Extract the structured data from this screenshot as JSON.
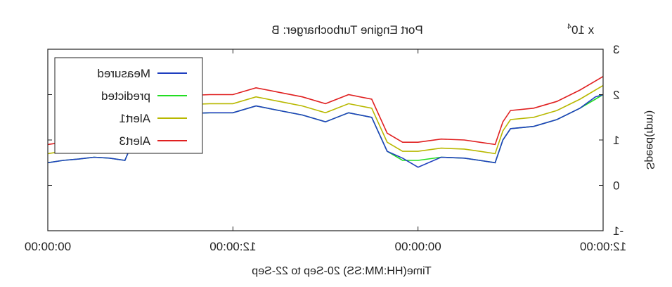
{
  "chart_data": {
    "type": "line",
    "title": "Port Engine Turbocharger: B",
    "xlabel": "Time(HH:MM:SS) 20-Sep to 22-Sep",
    "ylabel": "Speed(rpm)",
    "y_multiplier_base": "x 10",
    "y_multiplier_exp": "4",
    "ylim": [
      -1,
      3
    ],
    "yticks": [
      -1,
      0,
      1,
      2,
      3
    ],
    "ytick_labels": [
      "-1",
      "0",
      "1",
      "2",
      "3"
    ],
    "xlim_hours": [
      0,
      36
    ],
    "xticks_hours": [
      0,
      12,
      24,
      36
    ],
    "xtick_labels": [
      "12:00:00",
      "00:00:00",
      "12:00:00",
      "00:00:00"
    ],
    "grid": false,
    "legend_position": "top-left",
    "x_hours": [
      0,
      0.5,
      1.5,
      3.0,
      4.5,
      6.0,
      6.5,
      7.0,
      8.0,
      9.0,
      10.5,
      12.0,
      13.0,
      14.0,
      15.0,
      16.5,
      18.0,
      19.5,
      21.0,
      22.5,
      24.0,
      25.5,
      27.0,
      28.5,
      29.5,
      30.0,
      30.5,
      31.0,
      32.0,
      33.0,
      34.0,
      35.0,
      36.0
    ],
    "series": [
      {
        "name": "Measured",
        "color": "#1f3fbf",
        "values": [
          2.0,
          1.95,
          1.7,
          1.45,
          1.3,
          1.25,
          1.0,
          0.5,
          0.55,
          0.6,
          0.62,
          0.4,
          0.6,
          0.75,
          1.5,
          1.6,
          1.4,
          1.55,
          1.65,
          1.75,
          1.6,
          1.6,
          1.58,
          1.6,
          1.85,
          1.2,
          0.95,
          0.55,
          0.6,
          0.62,
          0.58,
          0.55,
          0.5
        ]
      },
      {
        "name": "predicted",
        "color": "#22dd22",
        "values": [
          2.0,
          1.9,
          1.7,
          1.45,
          1.3,
          1.25,
          1.0,
          0.5,
          0.55,
          0.6,
          0.62,
          0.55,
          0.55,
          0.75,
          1.5,
          1.6,
          1.4,
          1.55,
          1.65,
          1.75,
          1.6,
          1.6,
          1.58,
          1.6,
          1.85,
          1.2,
          0.95,
          0.55,
          0.6,
          0.62,
          0.58,
          0.55,
          0.5
        ]
      },
      {
        "name": "Alert1",
        "color": "#b8b800",
        "values": [
          2.2,
          2.1,
          1.9,
          1.65,
          1.5,
          1.45,
          1.2,
          0.7,
          0.75,
          0.8,
          0.82,
          0.75,
          0.75,
          0.95,
          1.7,
          1.8,
          1.6,
          1.75,
          1.85,
          1.95,
          1.8,
          1.8,
          1.78,
          1.8,
          2.05,
          1.4,
          1.15,
          0.75,
          0.8,
          0.82,
          0.78,
          0.75,
          0.7
        ]
      },
      {
        "name": "Alert3",
        "color": "#e02020",
        "values": [
          2.4,
          2.3,
          2.1,
          1.85,
          1.7,
          1.65,
          1.4,
          0.9,
          0.95,
          1.0,
          1.02,
          0.95,
          0.95,
          1.15,
          1.9,
          2.0,
          1.8,
          1.95,
          2.05,
          2.15,
          2.0,
          2.0,
          1.98,
          2.0,
          2.25,
          1.6,
          1.35,
          0.95,
          1.0,
          1.02,
          0.98,
          0.95,
          0.9
        ]
      }
    ]
  }
}
